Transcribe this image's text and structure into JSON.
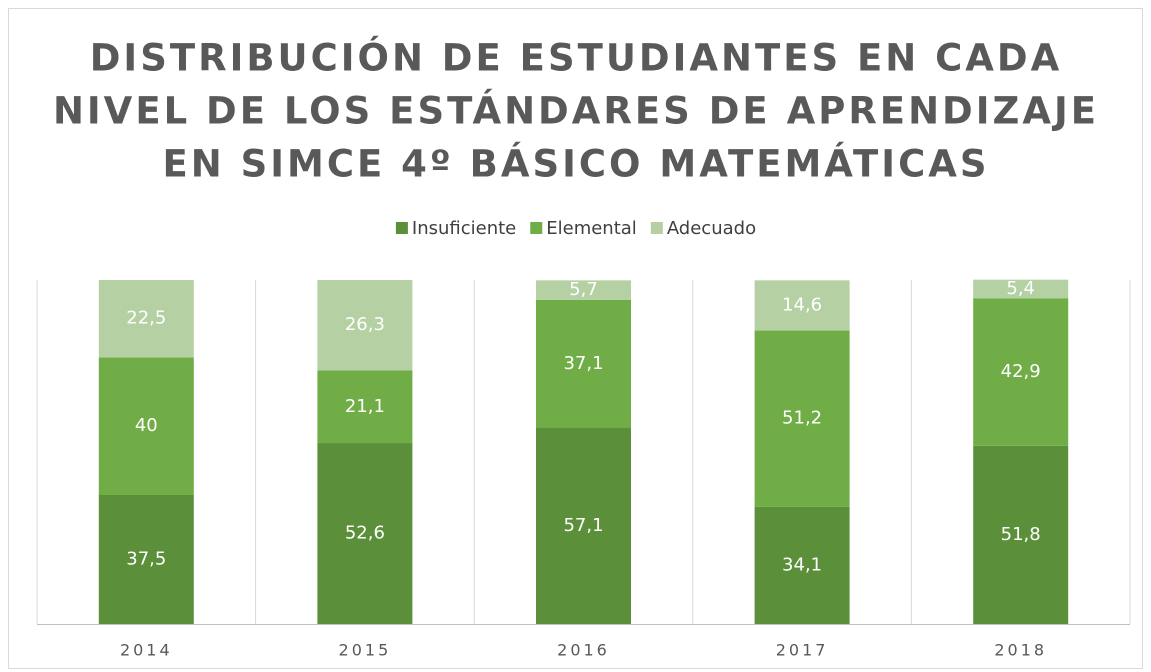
{
  "chart_data": {
    "type": "stacked_bar",
    "title": [
      "DISTRIBUCIÓN DE ESTUDIANTES EN CADA",
      "NIVEL DE LOS ESTÁNDARES DE APRENDIZAJE",
      "EN SIMCE 4º BÁSICO MATEMÁTICAS"
    ],
    "categories": [
      "2014",
      "2015",
      "2016",
      "2017",
      "2018"
    ],
    "series": [
      {
        "name": "Insuficiente",
        "color": "#5b8f3a",
        "values": [
          37.5,
          52.6,
          57.1,
          34.1,
          51.8
        ],
        "value_labels": [
          "37,5",
          "52,6",
          "57,1",
          "34,1",
          "51,8"
        ]
      },
      {
        "name": "Elemental",
        "color": "#70ad47",
        "values": [
          40,
          21.1,
          37.1,
          51.2,
          42.9
        ],
        "value_labels": [
          "40",
          "21,1",
          "37,1",
          "51,2",
          "42,9"
        ]
      },
      {
        "name": "Adecuado",
        "color": "#b5d1a4",
        "values": [
          22.5,
          26.3,
          5.7,
          14.6,
          5.4
        ],
        "value_labels": [
          "22,5",
          "26,3",
          "5,7",
          "14,6",
          "5,4"
        ]
      }
    ],
    "ylim": [
      0,
      100
    ],
    "legend": "top"
  }
}
